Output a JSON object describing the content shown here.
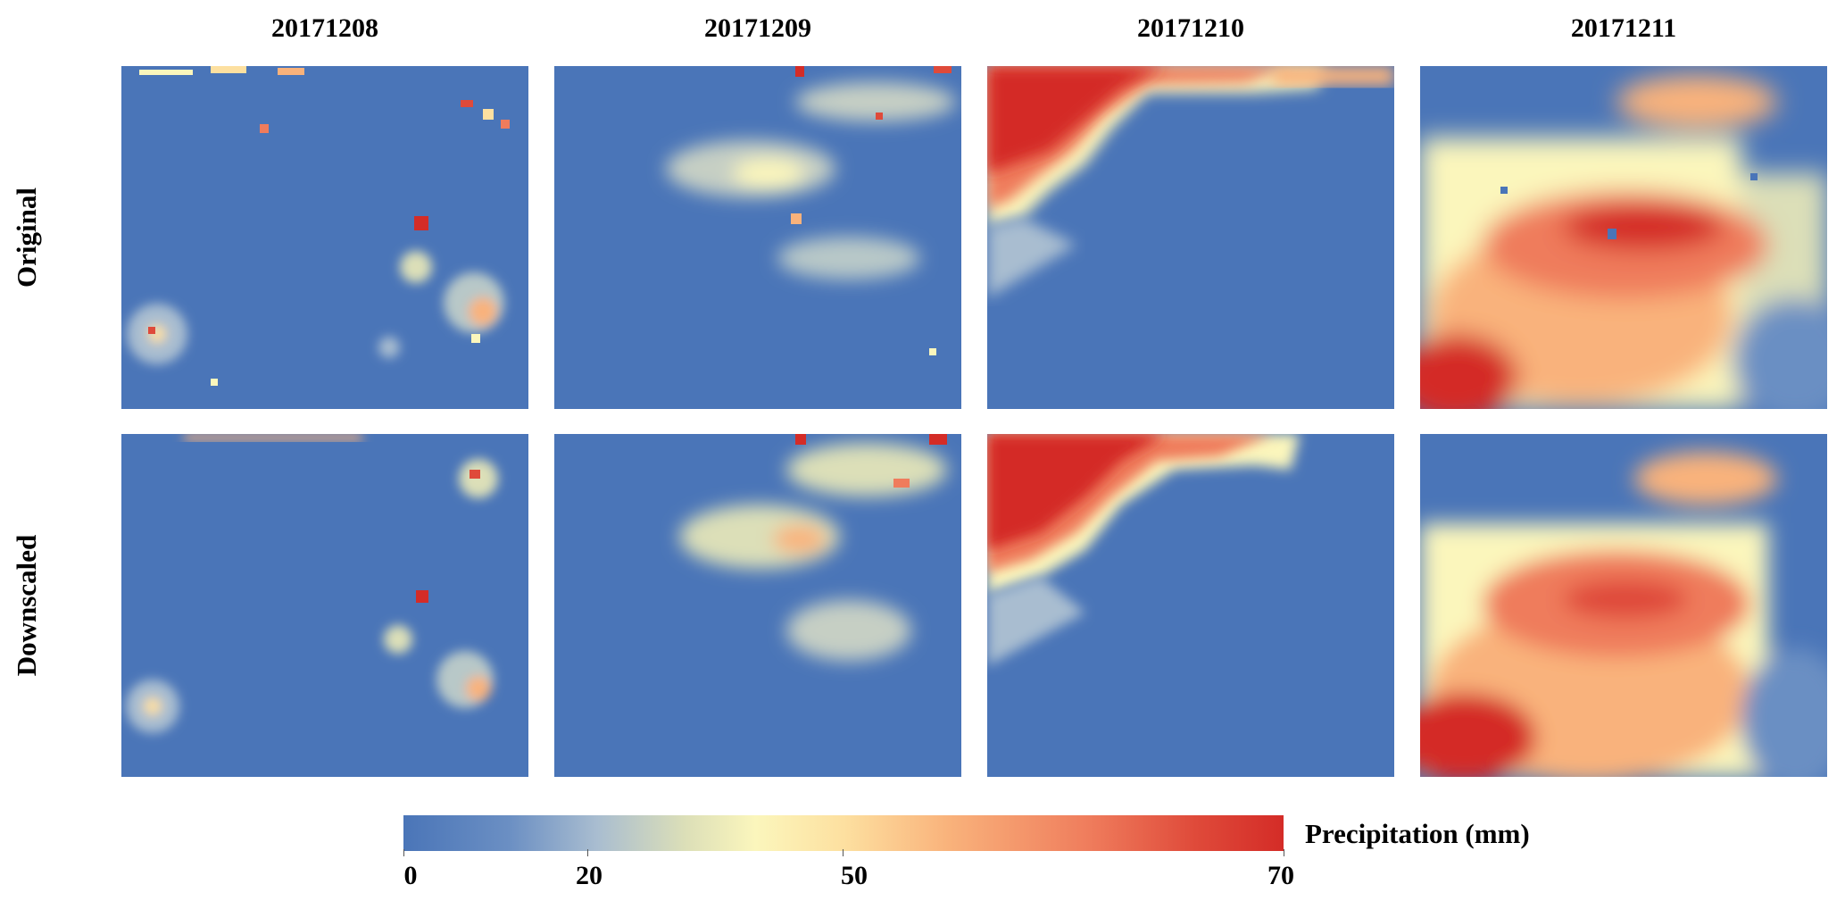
{
  "columns": [
    "20171208",
    "20171209",
    "20171210",
    "20171211"
  ],
  "rows": [
    "Original",
    "Downscaled"
  ],
  "colorbar": {
    "label": "Precipitation (mm)",
    "ticks": [
      0,
      20,
      50,
      70
    ],
    "min": 0,
    "max": 70,
    "colors": [
      "#4a75b8",
      "#fbf6bc",
      "#d42c27"
    ]
  }
}
